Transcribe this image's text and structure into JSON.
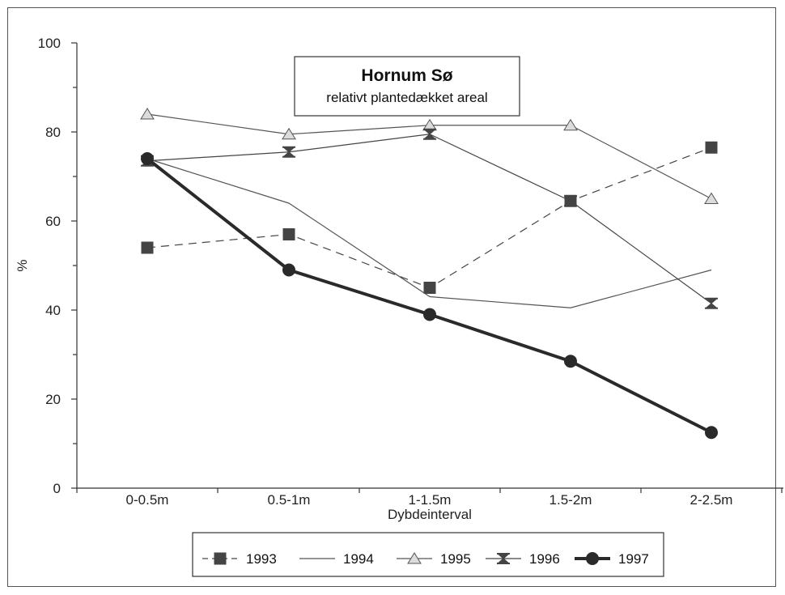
{
  "chart_data": {
    "type": "line",
    "title": "Hornum Sø",
    "subtitle": "relativt plantedækket areal",
    "xlabel": "Dybdeinterval",
    "ylabel": "%",
    "categories": [
      "0-0.5m",
      "0.5-1m",
      "1-1.5m",
      "1.5-2m",
      "2-2.5m"
    ],
    "ylim": [
      0,
      100
    ],
    "yticks": [
      "0",
      "20",
      "40",
      "60",
      "80",
      "100"
    ],
    "grid": false,
    "legend_position": "bottom",
    "series": [
      {
        "name": "1993",
        "values": [
          54,
          57,
          45,
          64.5,
          76.5
        ],
        "style": "dashed",
        "marker": "square",
        "color": "#444444"
      },
      {
        "name": "1994",
        "values": [
          74,
          64,
          43,
          40.5,
          49
        ],
        "style": "solid",
        "marker": "none",
        "color": "#555555"
      },
      {
        "name": "1995",
        "values": [
          84,
          79.5,
          81.5,
          81.5,
          65
        ],
        "style": "solid",
        "marker": "triangle",
        "color": "#555555"
      },
      {
        "name": "1996",
        "values": [
          73.5,
          75.5,
          79.5,
          64.5,
          41.5
        ],
        "style": "solid",
        "marker": "hourglass",
        "color": "#444444"
      },
      {
        "name": "1997",
        "values": [
          74,
          49,
          39,
          28.5,
          12.5
        ],
        "style": "thick",
        "marker": "circle",
        "color": "#2a2a2a"
      }
    ]
  }
}
